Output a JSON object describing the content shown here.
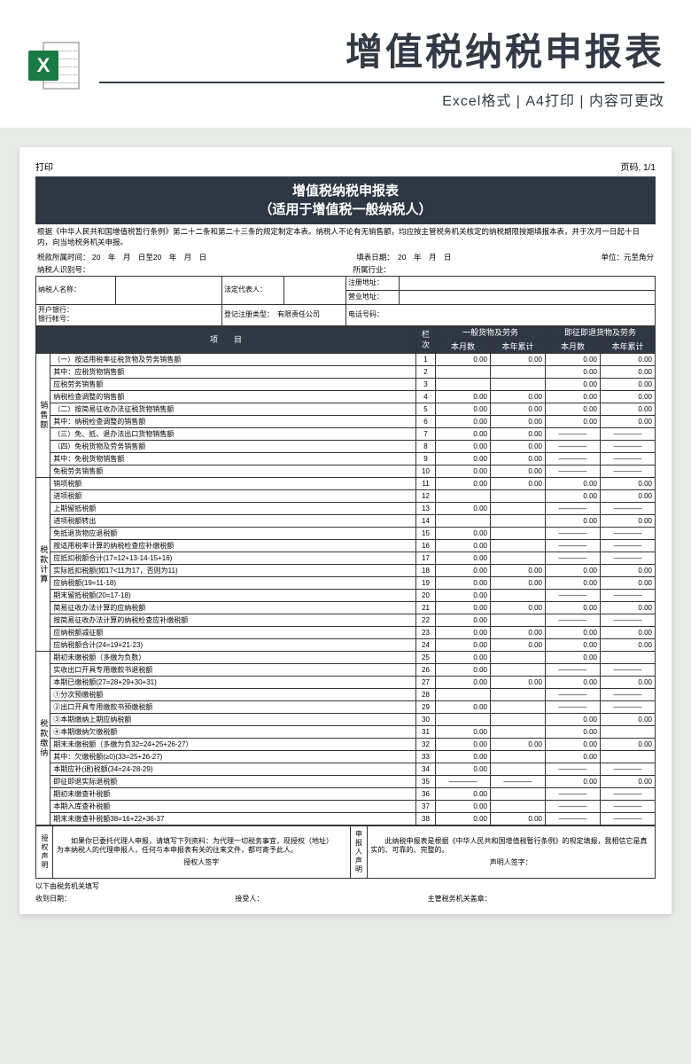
{
  "header": {
    "title": "增值税纳税申报表",
    "subtitle": "Excel格式 | A4打印 | 内容可更改",
    "icon_color": "#1a7a43",
    "icon_letter": "X"
  },
  "topbar": {
    "left": "打印",
    "right": "页码, 1/1"
  },
  "form_title_line1": "增值税纳税申报表",
  "form_title_line2": "（适用于增值税一般纳税人）",
  "intro": "根据《中华人民共和国增值税暂行条例》第二十二条和第二十三条的规定制定本表。纳税人不论有无销售额，均应按主管税务机关核定的纳税期限按期填报本表，并于次月一日起十日内，向当地税务机关申报。",
  "meta": {
    "period": "税款所属时间：  20　年　月　日至20　年　月　日",
    "fill_date": "填表日期：　20　年　月　日",
    "unit": "单位：元至角分",
    "taxpayer_id_label": "纳税人识别号：",
    "industry_label": "所属行业："
  },
  "info": {
    "taxpayer_name_label": "纳税人名称：",
    "legal_rep_label": "法定代表人：",
    "reg_addr_label": "注册地址：",
    "biz_addr_label": "营业地址：",
    "bank_label": "开户银行：",
    "account_label": "银行帐号：",
    "reg_type_label": "登记注册类型：",
    "reg_type_value": "有限责任公司",
    "phone_label": "电话号码："
  },
  "columns": {
    "item": "项　　目",
    "idx": "栏次",
    "group1": "一般货物及劳务",
    "group2": "即征即退货物及劳务",
    "month": "本月数",
    "year": "本年累计"
  },
  "sections": {
    "sales": "销售额",
    "tax_calc": "税款计算",
    "tax_pay": "税款缴纳"
  },
  "dash": "————",
  "rows": [
    {
      "sec": "sales",
      "label": "（一）按适用税率征税货物及劳务销售额",
      "idx": 1,
      "v": [
        "0.00",
        "0.00",
        "0.00",
        "0.00"
      ]
    },
    {
      "sec": "sales",
      "label": "其中：应税货物销售额",
      "idx": 2,
      "v": [
        "",
        "",
        "0.00",
        "0.00"
      ]
    },
    {
      "sec": "sales",
      "label": "应税劳务销售额",
      "idx": 3,
      "v": [
        "",
        "",
        "0.00",
        "0.00"
      ]
    },
    {
      "sec": "sales",
      "label": "纳税检查调整的销售额",
      "idx": 4,
      "v": [
        "0.00",
        "0.00",
        "0.00",
        "0.00"
      ]
    },
    {
      "sec": "sales",
      "label": "（二）按简易征收办法征税货物销售额",
      "idx": 5,
      "v": [
        "0.00",
        "0.00",
        "0.00",
        "0.00"
      ]
    },
    {
      "sec": "sales",
      "label": "其中：纳税检查调整的销售额",
      "idx": 6,
      "v": [
        "0.00",
        "0.00",
        "0.00",
        "0.00"
      ]
    },
    {
      "sec": "sales",
      "label": "（三）免、抵、退办法出口货物销售额",
      "idx": 7,
      "v": [
        "0.00",
        "0.00",
        "dash",
        "dash"
      ]
    },
    {
      "sec": "sales",
      "label": "（四）免税货物及劳务销售额",
      "idx": 8,
      "v": [
        "0.00",
        "0.00",
        "dash",
        "dash"
      ]
    },
    {
      "sec": "sales",
      "label": "其中：免税货物销售额",
      "idx": 9,
      "v": [
        "0.00",
        "0.00",
        "dash",
        "dash"
      ]
    },
    {
      "sec": "sales",
      "label": "免税劳务销售额",
      "idx": 10,
      "v": [
        "0.00",
        "0.00",
        "dash",
        "dash"
      ]
    },
    {
      "sec": "tax_calc",
      "label": "销项税额",
      "idx": 11,
      "v": [
        "0.00",
        "0.00",
        "0.00",
        "0.00"
      ]
    },
    {
      "sec": "tax_calc",
      "label": "进项税额",
      "idx": 12,
      "v": [
        "",
        "",
        "0.00",
        "0.00"
      ]
    },
    {
      "sec": "tax_calc",
      "label": "上期留抵税额",
      "idx": 13,
      "v": [
        "0.00",
        "",
        "dash",
        "dash"
      ]
    },
    {
      "sec": "tax_calc",
      "label": "进项税额转出",
      "idx": 14,
      "v": [
        "",
        "",
        "0.00",
        "0.00"
      ]
    },
    {
      "sec": "tax_calc",
      "label": "免抵退货物应退税额",
      "idx": 15,
      "v": [
        "0.00",
        "",
        "dash",
        "dash"
      ]
    },
    {
      "sec": "tax_calc",
      "label": "按适用税率计算的纳税检查应补缴税额",
      "idx": 16,
      "v": [
        "0.00",
        "",
        "dash",
        "dash"
      ]
    },
    {
      "sec": "tax_calc",
      "label": "应抵扣税额合计(17=12+13-14-15+16)",
      "idx": 17,
      "v": [
        "0.00",
        "",
        "dash",
        "dash"
      ]
    },
    {
      "sec": "tax_calc",
      "label": "实际抵扣税额(如17<11为17，否则为11)",
      "idx": 18,
      "v": [
        "0.00",
        "0.00",
        "0.00",
        "0.00"
      ]
    },
    {
      "sec": "tax_calc",
      "label": "应纳税额(19=11-18)",
      "idx": 19,
      "v": [
        "0.00",
        "0.00",
        "0.00",
        "0.00"
      ]
    },
    {
      "sec": "tax_calc",
      "label": "期末留抵税额(20=17-18)",
      "idx": 20,
      "v": [
        "0.00",
        "",
        "dash",
        "dash"
      ]
    },
    {
      "sec": "tax_calc",
      "label": "简易征收办法计算的应纳税额",
      "idx": 21,
      "v": [
        "0.00",
        "0.00",
        "0.00",
        "0.00"
      ]
    },
    {
      "sec": "tax_calc",
      "label": "按简易征收办法计算的纳税检查应补缴税额",
      "idx": 22,
      "v": [
        "0.00",
        "",
        "dash",
        "dash"
      ]
    },
    {
      "sec": "tax_calc",
      "label": "应纳税额减征额",
      "idx": 23,
      "v": [
        "0.00",
        "0.00",
        "0.00",
        "0.00"
      ]
    },
    {
      "sec": "tax_calc",
      "label": "应纳税额合计(24=19+21-23)",
      "idx": 24,
      "v": [
        "0.00",
        "0.00",
        "0.00",
        "0.00"
      ]
    },
    {
      "sec": "tax_pay",
      "label": "期初未缴税额（多缴为负数）",
      "idx": 25,
      "v": [
        "0.00",
        "",
        "0.00",
        ""
      ]
    },
    {
      "sec": "tax_pay",
      "label": "实收出口开具专用缴款书退税额",
      "idx": 26,
      "v": [
        "0.00",
        "",
        "dash",
        "dash"
      ]
    },
    {
      "sec": "tax_pay",
      "label": "本期已缴税额(27=28+29+30+31)",
      "idx": 27,
      "v": [
        "0.00",
        "0.00",
        "0.00",
        "0.00"
      ]
    },
    {
      "sec": "tax_pay",
      "label": "①分次预缴税额",
      "idx": 28,
      "v": [
        "",
        "",
        "dash",
        "dash"
      ]
    },
    {
      "sec": "tax_pay",
      "label": "②出口开具专用缴款书预缴税额",
      "idx": 29,
      "v": [
        "0.00",
        "",
        "dash",
        "dash"
      ]
    },
    {
      "sec": "tax_pay",
      "label": "③本期缴纳上期应纳税额",
      "idx": 30,
      "v": [
        "",
        "",
        "0.00",
        "0.00"
      ]
    },
    {
      "sec": "tax_pay",
      "label": "④本期缴纳欠缴税额",
      "idx": 31,
      "v": [
        "0.00",
        "",
        "0.00",
        ""
      ]
    },
    {
      "sec": "tax_pay",
      "label": "期末未缴税额（多缴为负32=24+25+26-27）",
      "idx": 32,
      "v": [
        "0.00",
        "0.00",
        "0.00",
        "0.00"
      ]
    },
    {
      "sec": "tax_pay",
      "label": "其中：欠缴税额(≥0)(33=25+26-27)",
      "idx": 33,
      "v": [
        "0.00",
        "",
        "0.00",
        ""
      ]
    },
    {
      "sec": "tax_pay",
      "label": "本期应补(退)税额(34=24-28-29)",
      "idx": 34,
      "v": [
        "0.00",
        "",
        "dash",
        "dash"
      ]
    },
    {
      "sec": "tax_pay",
      "label": "即征即退实际退税额",
      "idx": 35,
      "v": [
        "dash",
        "dash",
        "0.00",
        "0.00"
      ]
    },
    {
      "sec": "tax_pay",
      "label": "期初未缴查补税额",
      "idx": 36,
      "v": [
        "0.00",
        "",
        "dash",
        "dash"
      ]
    },
    {
      "sec": "tax_pay",
      "label": "本期入库查补税额",
      "idx": 37,
      "v": [
        "0.00",
        "",
        "dash",
        "dash"
      ]
    },
    {
      "sec": "tax_pay",
      "label": "期末未缴查补税额38=16+22+36-37",
      "idx": 38,
      "v": [
        "0.00",
        "0.00",
        "dash",
        "dash"
      ]
    }
  ],
  "footer": {
    "auth_label": "授权声明",
    "auth_text": "　　如果你已委托代理人申报，请填写下列资料：为代理一切税务事宜，现授权（地址）　　　　　　　　　为本纳税人的代理申报人，任何与本申报表有关的往来文件，都可寄予此人。",
    "auth_sign": "授权人签字",
    "decl_label": "申报人声明",
    "decl_text": "　　此纳税申报表是根据《中华人民共和国增值税暂行条例》的规定填报，我相信它是真实的、可靠的、完整的。",
    "decl_sign": "声明人签字：",
    "bottom1": "以下由税务机关填写",
    "bottom2": "收到日期：",
    "bottom3": "接受人：",
    "bottom4": "主管税务机关盖章："
  },
  "styling": {
    "header_bg": "#2d3842",
    "header_fg": "#ffffff",
    "border_color": "#333333",
    "page_bg": "#e8ebe8",
    "sheet_bg": "#ffffff",
    "col_widths": {
      "section": 14,
      "label": 230,
      "idx": 22,
      "val": 62
    }
  }
}
